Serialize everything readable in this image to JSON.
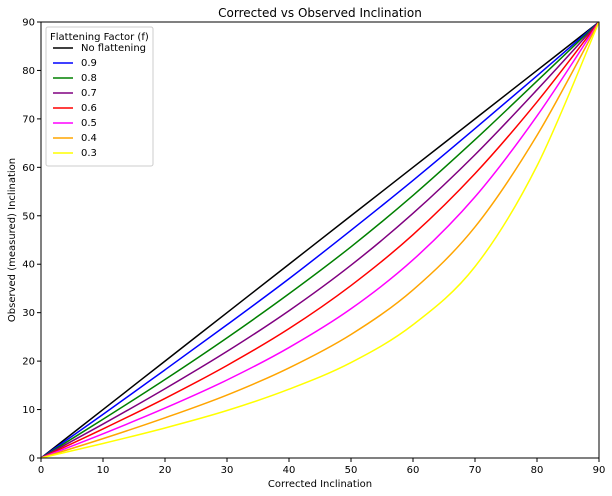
{
  "chart_data": {
    "type": "line",
    "title": "Corrected vs Observed Inclination",
    "xlabel": "Corrected Inclination",
    "ylabel": "Observed (measured) Inclination",
    "xlim": [
      0,
      90
    ],
    "ylim": [
      0,
      90
    ],
    "xticks": [
      0,
      10,
      20,
      30,
      40,
      50,
      60,
      70,
      80,
      90
    ],
    "yticks": [
      0,
      10,
      20,
      30,
      40,
      50,
      60,
      70,
      80,
      90
    ],
    "grid": false,
    "legend": {
      "title": "Flattening Factor (f)",
      "placement": "top-left"
    },
    "x": [
      0,
      10,
      20,
      30,
      40,
      50,
      60,
      70,
      80,
      90
    ],
    "series": [
      {
        "name": "No flattening",
        "color": "#000000",
        "values": [
          0,
          10,
          20,
          30,
          40,
          50,
          60,
          70,
          80,
          90
        ]
      },
      {
        "name": "0.9",
        "color": "#0000ff",
        "values": [
          0,
          9.0,
          18.2,
          27.5,
          37.0,
          47.0,
          57.3,
          68.0,
          78.9,
          90
        ]
      },
      {
        "name": "0.8",
        "color": "#008000",
        "values": [
          0,
          8.0,
          16.2,
          24.8,
          33.9,
          43.6,
          54.2,
          65.7,
          77.8,
          90
        ]
      },
      {
        "name": "0.7",
        "color": "#800080",
        "values": [
          0,
          7.0,
          14.3,
          22.0,
          30.4,
          39.8,
          50.5,
          62.6,
          76.0,
          90
        ]
      },
      {
        "name": "0.6",
        "color": "#ff0000",
        "values": [
          0,
          6.0,
          12.3,
          19.1,
          26.7,
          35.6,
          46.1,
          58.7,
          73.5,
          90
        ]
      },
      {
        "name": "0.5",
        "color": "#ff00ff",
        "values": [
          0,
          5.0,
          10.3,
          16.1,
          22.8,
          30.8,
          40.9,
          53.9,
          70.6,
          90
        ]
      },
      {
        "name": "0.4",
        "color": "#ffa500",
        "values": [
          0,
          4.0,
          8.3,
          13.0,
          18.6,
          25.5,
          34.7,
          47.7,
          66.6,
          90
        ]
      },
      {
        "name": "0.3",
        "color": "#ffff00",
        "values": [
          0,
          3.0,
          6.2,
          9.8,
          14.2,
          19.7,
          27.5,
          39.5,
          60.3,
          90
        ]
      }
    ]
  }
}
